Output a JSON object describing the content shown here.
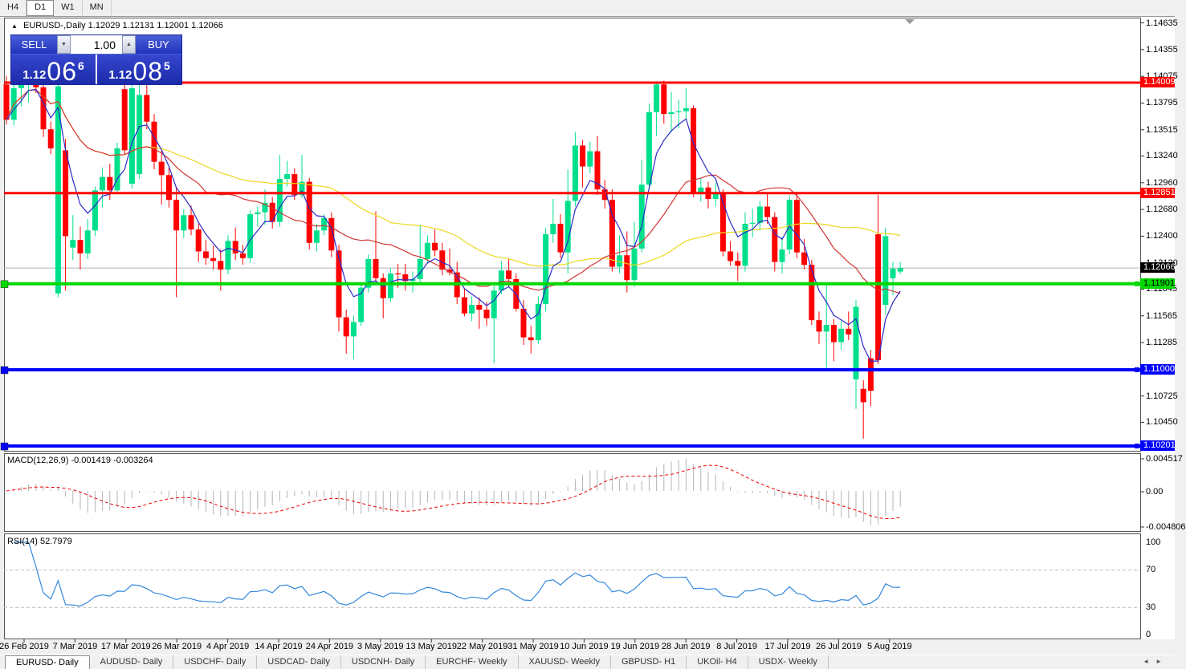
{
  "toolbar": {
    "timeframes": [
      "H4",
      "D1",
      "W1",
      "MN"
    ],
    "active": "D1"
  },
  "symbol_header": {
    "collapse_icon": "▲",
    "name": "EURUSD-,Daily",
    "ohlc": "1.12029 1.12131 1.12001 1.12066"
  },
  "one_click": {
    "sell_label": "SELL",
    "buy_label": "BUY",
    "volume": "1.00",
    "spinner_down_icon": "▼",
    "spinner_up_icon": "▲",
    "sell_price": {
      "prefix": "1.12",
      "big": "06",
      "sup": "6"
    },
    "buy_price": {
      "prefix": "1.12",
      "big": "08",
      "sup": "5"
    }
  },
  "colors": {
    "bull": "#00e08c",
    "bear": "#ff0000",
    "ma_fast": "#2a2ac8",
    "ma_mid": "#d23434",
    "ma_slow": "#ecd820",
    "macd_hist": "#b4b4b4",
    "macd_signal": "#ee0000",
    "rsi_line": "#3388dd",
    "current_price_line": "#b0b0b0",
    "level_red": "#ff0000",
    "level_green": "#00d800",
    "level_blue": "#0000ff"
  },
  "price_scale": {
    "ticks": [
      1.14635,
      1.14355,
      1.14075,
      1.13795,
      1.13515,
      1.1324,
      1.1296,
      1.1268,
      1.124,
      1.1212,
      1.11845,
      1.11565,
      1.11285,
      1.10725,
      1.1045
    ],
    "badges": [
      {
        "price": 1.14009,
        "bg": "#ff0000",
        "fg": "#ffffff",
        "marker": false
      },
      {
        "price": 1.12851,
        "bg": "#ff0000",
        "fg": "#ffffff",
        "marker": false
      },
      {
        "price": 1.12066,
        "bg": "#000000",
        "fg": "#ffffff",
        "marker": false
      },
      {
        "price": 1.11901,
        "bg": "#00d800",
        "fg": "#000000",
        "marker": true
      },
      {
        "price": 1.11,
        "bg": "#0000ff",
        "fg": "#ffffff",
        "marker": true
      },
      {
        "price": 1.10201,
        "bg": "#0000ff",
        "fg": "#ffffff",
        "marker": true
      }
    ]
  },
  "macd_panel": {
    "label": "MACD(12,26,9) -0.001419 -0.003264",
    "scale": [
      "0.004517",
      "0.00",
      "-0.004806"
    ]
  },
  "rsi_panel": {
    "label": "RSI(14) 52.7979",
    "scale": [
      "100",
      "70",
      "30",
      "0"
    ]
  },
  "time_axis": {
    "labels": [
      "26 Feb 2019",
      "7 Mar 2019",
      "17 Mar 2019",
      "26 Mar 2019",
      "4 Apr 2019",
      "14 Apr 2019",
      "24 Apr 2019",
      "3 May 2019",
      "13 May 2019",
      "22 May 2019",
      "31 May 2019",
      "10 Jun 2019",
      "19 Jun 2019",
      "28 Jun 2019",
      "8 Jul 2019",
      "17 Jul 2019",
      "26 Jul 2019",
      "5 Aug 2019"
    ]
  },
  "tabs": {
    "active_index": 0,
    "items": [
      "EURUSD- Daily",
      "AUDUSD- Daily",
      "USDCHF- Daily",
      "USDCAD- Daily",
      "USDCNH- Daily",
      "EURCHF- Weekly",
      "XAUUSD- Weekly",
      "GBPUSD- H1",
      "UKOil- H4",
      "USDX- Weekly"
    ],
    "scroll_left_icon": "◄",
    "scroll_right_icon": "►"
  },
  "chart_data": {
    "type": "candlestick",
    "symbol": "EURUSD-",
    "timeframe": "Daily",
    "last_ohlc": {
      "open": 1.12029,
      "high": 1.12131,
      "low": 1.12001,
      "close": 1.12066
    },
    "current_price": 1.12066,
    "price_axis_range": [
      1.1014,
      1.1469
    ],
    "horizontal_lines": [
      {
        "price": 1.14009,
        "color": "#ff0000",
        "w": 3,
        "handle": false
      },
      {
        "price": 1.12851,
        "color": "#ff0000",
        "w": 3,
        "handle": false
      },
      {
        "price": 1.11901,
        "color": "#00d800",
        "w": 4,
        "handle": true
      },
      {
        "price": 1.11,
        "color": "#0000ff",
        "w": 4,
        "handle": true
      },
      {
        "price": 1.10201,
        "color": "#0000ff",
        "w": 4,
        "handle": true
      }
    ],
    "moving_averages": [
      {
        "period": 5,
        "color": "#2a2ac8"
      },
      {
        "period": 20,
        "color": "#d23434"
      },
      {
        "period": 45,
        "color": "#ecd820"
      }
    ],
    "indicators": {
      "macd": {
        "params": "12,26,9",
        "value": -0.001419,
        "signal": -0.003264,
        "scale_max": 0.004517,
        "scale_min": -0.004806
      },
      "rsi": {
        "period": 14,
        "value": 52.7979,
        "levels": [
          70,
          30
        ]
      }
    },
    "candles": [
      [
        1.1399,
        1.1408,
        1.1357,
        1.1362
      ],
      [
        1.1362,
        1.1405,
        1.1356,
        1.1395
      ],
      [
        1.1395,
        1.1421,
        1.1376,
        1.1399
      ],
      [
        1.1399,
        1.1426,
        1.138,
        1.1415
      ],
      [
        1.1415,
        1.142,
        1.139,
        1.1396
      ],
      [
        1.1396,
        1.1402,
        1.1344,
        1.1352
      ],
      [
        1.1352,
        1.136,
        1.1326,
        1.1332
      ],
      [
        1.118,
        1.14,
        1.1176,
        1.1397
      ],
      [
        1.133,
        1.1342,
        1.1183,
        1.124
      ],
      [
        1.1228,
        1.1262,
        1.1215,
        1.1236
      ],
      [
        1.1236,
        1.125,
        1.1205,
        1.1222
      ],
      [
        1.1222,
        1.1258,
        1.1216,
        1.1246
      ],
      [
        1.1246,
        1.1292,
        1.124,
        1.1288
      ],
      [
        1.1288,
        1.1312,
        1.127,
        1.1302
      ],
      [
        1.1302,
        1.1316,
        1.1278,
        1.1288
      ],
      [
        1.1288,
        1.1338,
        1.1284,
        1.1332
      ],
      [
        1.1394,
        1.1402,
        1.1326,
        1.133
      ],
      [
        1.1295,
        1.1401,
        1.129,
        1.1395
      ],
      [
        1.1305,
        1.14,
        1.13,
        1.1388
      ],
      [
        1.1388,
        1.1425,
        1.1352,
        1.136
      ],
      [
        1.136,
        1.1368,
        1.131,
        1.1318
      ],
      [
        1.1318,
        1.133,
        1.1273,
        1.1304
      ],
      [
        1.1304,
        1.1312,
        1.127,
        1.1278
      ],
      [
        1.1278,
        1.1292,
        1.1176,
        1.1246
      ],
      [
        1.1246,
        1.1268,
        1.1238,
        1.1262
      ],
      [
        1.1262,
        1.1272,
        1.1241,
        1.1247
      ],
      [
        1.1247,
        1.1253,
        1.1213,
        1.1224
      ],
      [
        1.1224,
        1.1236,
        1.121,
        1.1217
      ],
      [
        1.1217,
        1.123,
        1.1205,
        1.1214
      ],
      [
        1.1214,
        1.1226,
        1.1183,
        1.1205
      ],
      [
        1.1205,
        1.1241,
        1.12,
        1.1235
      ],
      [
        1.1235,
        1.1249,
        1.1215,
        1.1222
      ],
      [
        1.1222,
        1.1231,
        1.121,
        1.1217
      ],
      [
        1.1217,
        1.1267,
        1.1212,
        1.1263
      ],
      [
        1.1263,
        1.1271,
        1.125,
        1.1265
      ],
      [
        1.1265,
        1.1289,
        1.1252,
        1.1275
      ],
      [
        1.1275,
        1.1281,
        1.1248,
        1.1255
      ],
      [
        1.1255,
        1.1325,
        1.125,
        1.13
      ],
      [
        1.13,
        1.1319,
        1.1292,
        1.1305
      ],
      [
        1.1305,
        1.1311,
        1.1278,
        1.1283
      ],
      [
        1.1283,
        1.1325,
        1.128,
        1.1297
      ],
      [
        1.1297,
        1.1301,
        1.1226,
        1.1233
      ],
      [
        1.1233,
        1.1253,
        1.1224,
        1.1246
      ],
      [
        1.1246,
        1.1263,
        1.1241,
        1.1259
      ],
      [
        1.1259,
        1.1265,
        1.1218,
        1.1225
      ],
      [
        1.1225,
        1.1231,
        1.114,
        1.1155
      ],
      [
        1.1155,
        1.1163,
        1.1117,
        1.1135
      ],
      [
        1.1135,
        1.1157,
        1.1111,
        1.115
      ],
      [
        1.115,
        1.1191,
        1.1146,
        1.1186
      ],
      [
        1.1186,
        1.1221,
        1.1181,
        1.1216
      ],
      [
        1.1216,
        1.1266,
        1.1191,
        1.1196
      ],
      [
        1.1196,
        1.1201,
        1.1154,
        1.1175
      ],
      [
        1.1175,
        1.1206,
        1.1171,
        1.1201
      ],
      [
        1.1201,
        1.1211,
        1.1186,
        1.12
      ],
      [
        1.12,
        1.1211,
        1.1183,
        1.1193
      ],
      [
        1.1193,
        1.1203,
        1.1181,
        1.1195
      ],
      [
        1.1195,
        1.1252,
        1.1191,
        1.1216
      ],
      [
        1.1216,
        1.1241,
        1.1211,
        1.1233
      ],
      [
        1.1233,
        1.1247,
        1.1219,
        1.1225
      ],
      [
        1.1225,
        1.1233,
        1.1199,
        1.1205
      ],
      [
        1.1205,
        1.1227,
        1.1199,
        1.1202
      ],
      [
        1.1202,
        1.1213,
        1.1169,
        1.1176
      ],
      [
        1.1176,
        1.1185,
        1.1156,
        1.1159
      ],
      [
        1.1159,
        1.1177,
        1.1151,
        1.1168
      ],
      [
        1.1168,
        1.1176,
        1.1143,
        1.1163
      ],
      [
        1.1163,
        1.1171,
        1.1146,
        1.1154
      ],
      [
        1.1154,
        1.1189,
        1.1107,
        1.1183
      ],
      [
        1.1183,
        1.1214,
        1.1179,
        1.1204
      ],
      [
        1.1204,
        1.1216,
        1.1187,
        1.1195
      ],
      [
        1.1195,
        1.1201,
        1.1161,
        1.1164
      ],
      [
        1.1164,
        1.1173,
        1.1126,
        1.1134
      ],
      [
        1.1134,
        1.1146,
        1.1117,
        1.1131
      ],
      [
        1.1131,
        1.1177,
        1.1127,
        1.1169
      ],
      [
        1.1169,
        1.1249,
        1.1161,
        1.1242
      ],
      [
        1.1242,
        1.1279,
        1.1233,
        1.1253
      ],
      [
        1.1253,
        1.1263,
        1.1217,
        1.1223
      ],
      [
        1.1223,
        1.131,
        1.1201,
        1.1277
      ],
      [
        1.1277,
        1.1349,
        1.1271,
        1.1335
      ],
      [
        1.1335,
        1.1341,
        1.1291,
        1.1313
      ],
      [
        1.1313,
        1.1339,
        1.1306,
        1.1329
      ],
      [
        1.1329,
        1.1345,
        1.1283,
        1.1289
      ],
      [
        1.1289,
        1.1299,
        1.1269,
        1.1278
      ],
      [
        1.1278,
        1.1289,
        1.1203,
        1.1208
      ],
      [
        1.1208,
        1.1241,
        1.1201,
        1.122
      ],
      [
        1.122,
        1.1245,
        1.1181,
        1.1194
      ],
      [
        1.1194,
        1.1255,
        1.1187,
        1.1227
      ],
      [
        1.1227,
        1.132,
        1.1223,
        1.1294
      ],
      [
        1.1294,
        1.1379,
        1.1289,
        1.137
      ],
      [
        1.137,
        1.1401,
        1.1345,
        1.1399
      ],
      [
        1.1399,
        1.1403,
        1.1358,
        1.1368
      ],
      [
        1.1368,
        1.1391,
        1.1349,
        1.137
      ],
      [
        1.137,
        1.1383,
        1.1353,
        1.1371
      ],
      [
        1.1371,
        1.1395,
        1.1363,
        1.1374
      ],
      [
        1.1374,
        1.1377,
        1.1281,
        1.1286
      ],
      [
        1.1286,
        1.1301,
        1.1276,
        1.1291
      ],
      [
        1.1291,
        1.1297,
        1.1269,
        1.1279
      ],
      [
        1.1279,
        1.1296,
        1.1271,
        1.1286
      ],
      [
        1.1286,
        1.1289,
        1.1219,
        1.1224
      ],
      [
        1.1224,
        1.1235,
        1.1209,
        1.1214
      ],
      [
        1.1214,
        1.1223,
        1.1193,
        1.1209
      ],
      [
        1.1209,
        1.1265,
        1.1203,
        1.1253
      ],
      [
        1.1253,
        1.1269,
        1.1239,
        1.1254
      ],
      [
        1.1254,
        1.1277,
        1.1246,
        1.1271
      ],
      [
        1.1271,
        1.1286,
        1.1253,
        1.126
      ],
      [
        1.126,
        1.1265,
        1.1203,
        1.1213
      ],
      [
        1.1213,
        1.1239,
        1.1201,
        1.1226
      ],
      [
        1.1226,
        1.1283,
        1.1221,
        1.1278
      ],
      [
        1.1278,
        1.1284,
        1.1217,
        1.1223
      ],
      [
        1.1223,
        1.1237,
        1.1205,
        1.121
      ],
      [
        1.121,
        1.1215,
        1.1147,
        1.1152
      ],
      [
        1.1152,
        1.1161,
        1.1127,
        1.114
      ],
      [
        1.114,
        1.1189,
        1.1102,
        1.1147
      ],
      [
        1.1147,
        1.1153,
        1.1109,
        1.1129
      ],
      [
        1.1129,
        1.1151,
        1.1121,
        1.1143
      ],
      [
        1.1143,
        1.1161,
        1.1131,
        1.1137
      ],
      [
        1.109,
        1.1173,
        1.1059,
        1.1166
      ],
      [
        1.108,
        1.1089,
        1.1028,
        1.1066
      ],
      [
        1.1112,
        1.1121,
        1.1062,
        1.1078
      ],
      [
        1.1242,
        1.1283,
        1.1106,
        1.111
      ],
      [
        1.1168,
        1.1249,
        1.1158,
        1.124
      ],
      [
        1.1196,
        1.1213,
        1.1178,
        1.1206
      ],
      [
        1.12029,
        1.12131,
        1.12001,
        1.12066
      ]
    ]
  }
}
